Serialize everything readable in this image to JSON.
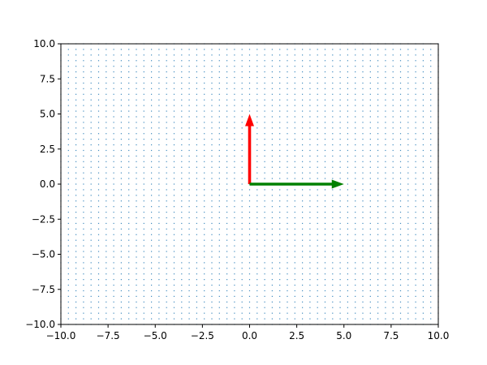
{
  "chart_data": {
    "type": "scatter",
    "title": "",
    "xlabel": "",
    "ylabel": "",
    "xlim": [
      -10,
      10
    ],
    "ylim": [
      -10,
      10
    ],
    "grid": false,
    "legend": "none",
    "x_ticks": [
      -10.0,
      -7.5,
      -5.0,
      -2.5,
      0.0,
      2.5,
      5.0,
      7.5,
      10.0
    ],
    "x_tick_labels": [
      "−10.0",
      "−7.5",
      "−5.0",
      "−2.5",
      "0.0",
      "2.5",
      "5.0",
      "7.5",
      "10.0"
    ],
    "y_ticks": [
      10.0,
      7.5,
      5.0,
      2.5,
      0.0,
      -2.5,
      -5.0,
      -7.5,
      -10.0
    ],
    "y_tick_labels": [
      "10.0",
      "7.5",
      "5.0",
      "2.5",
      "0.0",
      "−2.5",
      "−5.0",
      "−7.5",
      "−10.0"
    ],
    "point_grid": {
      "x_start": -10,
      "x_end": 10,
      "x_step": 0.4,
      "y_start": -10,
      "y_end": 10,
      "y_step": 0.4,
      "color": "#1f77b4"
    },
    "vectors": [
      {
        "from": [
          0,
          0
        ],
        "to": [
          0,
          5
        ],
        "color": "#ff0000"
      },
      {
        "from": [
          0,
          0
        ],
        "to": [
          5,
          0
        ],
        "color": "#008000"
      }
    ]
  }
}
